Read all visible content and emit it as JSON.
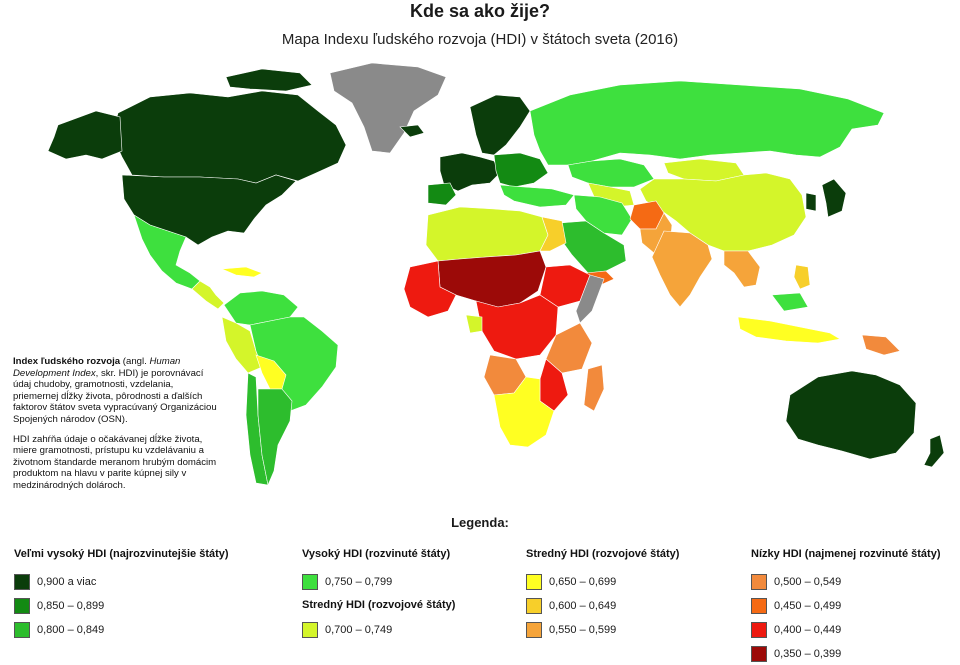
{
  "title": "Kde sa ako žije?",
  "subtitle": "Mapa Indexu ľudského rozvoja (HDI) v štátoch sveta (2016)",
  "info": {
    "p1_bold": "Index ľudského rozvoja",
    "p1_a": " (angl. ",
    "p1_italic": "Human Development Index",
    "p1_b": ", skr. HDI) je porovnávací údaj chudoby, gramotnosti, vzdelania, priemernej dĺžky života, pôrodnosti a ďalších faktorov štátov sveta vypracúvaný Organizáciou Spojených národov (OSN).",
    "p2": "HDI zahŕňa údaje o očakávanej dĺžke života, miere gramotnosti, prístupu ku vzdelávaniu a životnom štandarde meranom hrubým domácim produktom na hlavu v parite kúpnej sily v medzinárodných dolároch."
  },
  "legend": {
    "title": "Legenda:",
    "groups": [
      {
        "heading": "Veľmi vysoký HDI (najrozvinutejšie  štáty)",
        "items": [
          {
            "label": "0,900 a viac",
            "color": "#0b3d0b"
          },
          {
            "label": "0,850  –  0,899",
            "color": "#138a13"
          },
          {
            "label": "0,800  –  0,849",
            "color": "#2dbd2d"
          }
        ]
      },
      {
        "heading": "Vysoký HDI (rozvinuté  štáty)",
        "items": [
          {
            "label": "0,750  –  0,799",
            "color": "#3ee03e"
          }
        ]
      },
      {
        "heading": "Stredný HDI (rozvojové  štáty)",
        "items": [
          {
            "label": "0,700  –  0,749",
            "color": "#d4f52a"
          }
        ]
      },
      {
        "heading": "Stredný HDI (rozvojové  štáty)",
        "items": [
          {
            "label": "0,650  –  0,699",
            "color": "#ffff22"
          },
          {
            "label": "0,600  –  0,649",
            "color": "#f7cf2a"
          },
          {
            "label": "0,550  –  0,599",
            "color": "#f5a43a"
          }
        ]
      },
      {
        "heading": "Nízky HDI (najmenej rozvinuté  štáty)",
        "items": [
          {
            "label": "0,500  –  0,549",
            "color": "#f28a3c"
          },
          {
            "label": "0,450  –  0,499",
            "color": "#f56a14"
          },
          {
            "label": "0,400  –  0,449",
            "color": "#ee1a10"
          },
          {
            "label": "0,350  –  0,399",
            "color": "#9c0a08"
          }
        ]
      }
    ]
  },
  "map_colors": {
    "no_data": "#8a8a8a",
    "very_high_1": "#0b3d0b",
    "very_high_2": "#138a13",
    "very_high_3": "#2dbd2d",
    "high": "#3ee03e",
    "medium_1": "#d4f52a",
    "medium_2": "#ffff22",
    "medium_3": "#f7cf2a",
    "medium_4": "#f5a43a",
    "low_1": "#f28a3c",
    "low_2": "#f56a14",
    "low_3": "#ee1a10",
    "low_4": "#9c0a08"
  }
}
